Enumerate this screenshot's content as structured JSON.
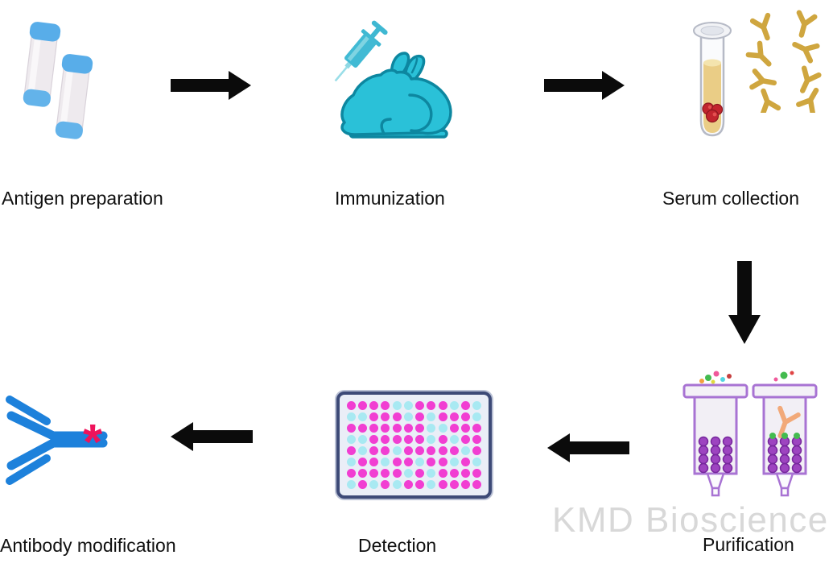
{
  "watermark": {
    "text": "KMD Bioscience",
    "color": "#d8d8d8"
  },
  "steps": [
    {
      "id": "antigen-preparation",
      "label": "Antigen preparation",
      "icon": "antigen-vials-icon"
    },
    {
      "id": "immunization",
      "label": "Immunization",
      "icon": "rabbit-syringe-icon"
    },
    {
      "id": "serum-collection",
      "label": "Serum collection",
      "icon": "serum-tube-antibodies-icon"
    },
    {
      "id": "purification",
      "label": "Purification",
      "icon": "purification-columns-icon"
    },
    {
      "id": "detection",
      "label": "Detection",
      "icon": "elisa-plate-icon"
    },
    {
      "id": "antibody-modification",
      "label": "Antibody modification",
      "icon": "labeled-antibody-icon"
    }
  ],
  "arrows": [
    {
      "id": "arrow-1",
      "from": "antigen-preparation",
      "to": "immunization",
      "direction": "right"
    },
    {
      "id": "arrow-2",
      "from": "immunization",
      "to": "serum-collection",
      "direction": "right"
    },
    {
      "id": "arrow-3",
      "from": "serum-collection",
      "to": "purification",
      "direction": "down"
    },
    {
      "id": "arrow-4",
      "from": "purification",
      "to": "detection",
      "direction": "left"
    },
    {
      "id": "arrow-5",
      "from": "detection",
      "to": "antibody-modification",
      "direction": "left"
    }
  ],
  "modified_antibody_marker": "*",
  "colors": {
    "arrow": "#0b0b0b",
    "vial_cap": "#58ade9",
    "vial_body": "#eeeaee",
    "rabbit": "#2ac1d8",
    "rabbit_outline": "#0d87a0",
    "syringe": "#41bad4",
    "serum": "#eacd86",
    "blood_clot": "#c2252e",
    "antibody_gold": "#cfa63f",
    "column_purple": "#a873d3",
    "column_beads": "#9d44c0",
    "eluted_antibody_orange": "#f2a979",
    "well_positive": "#f13ed2",
    "well_negative": "#a8e9f2",
    "antibody_blue": "#1d81db",
    "marker_red": "#ef135b"
  },
  "elisa_plate": {
    "rows": 8,
    "cols": 12,
    "legend": {
      "M": "magenta well (positive)",
      "C": "cyan well (negative)"
    },
    "grid": [
      "MMMMCCMMMCMC",
      "CCMMMCMCMMMC",
      "MMMMMMMCCMMM",
      "CCMMMMMCMCMM",
      "MCMMCMMMMMCM",
      "CMMCMMCMMCMC",
      "MMMMMCMCMMMM",
      "CMCMCMMCMMMM"
    ]
  }
}
